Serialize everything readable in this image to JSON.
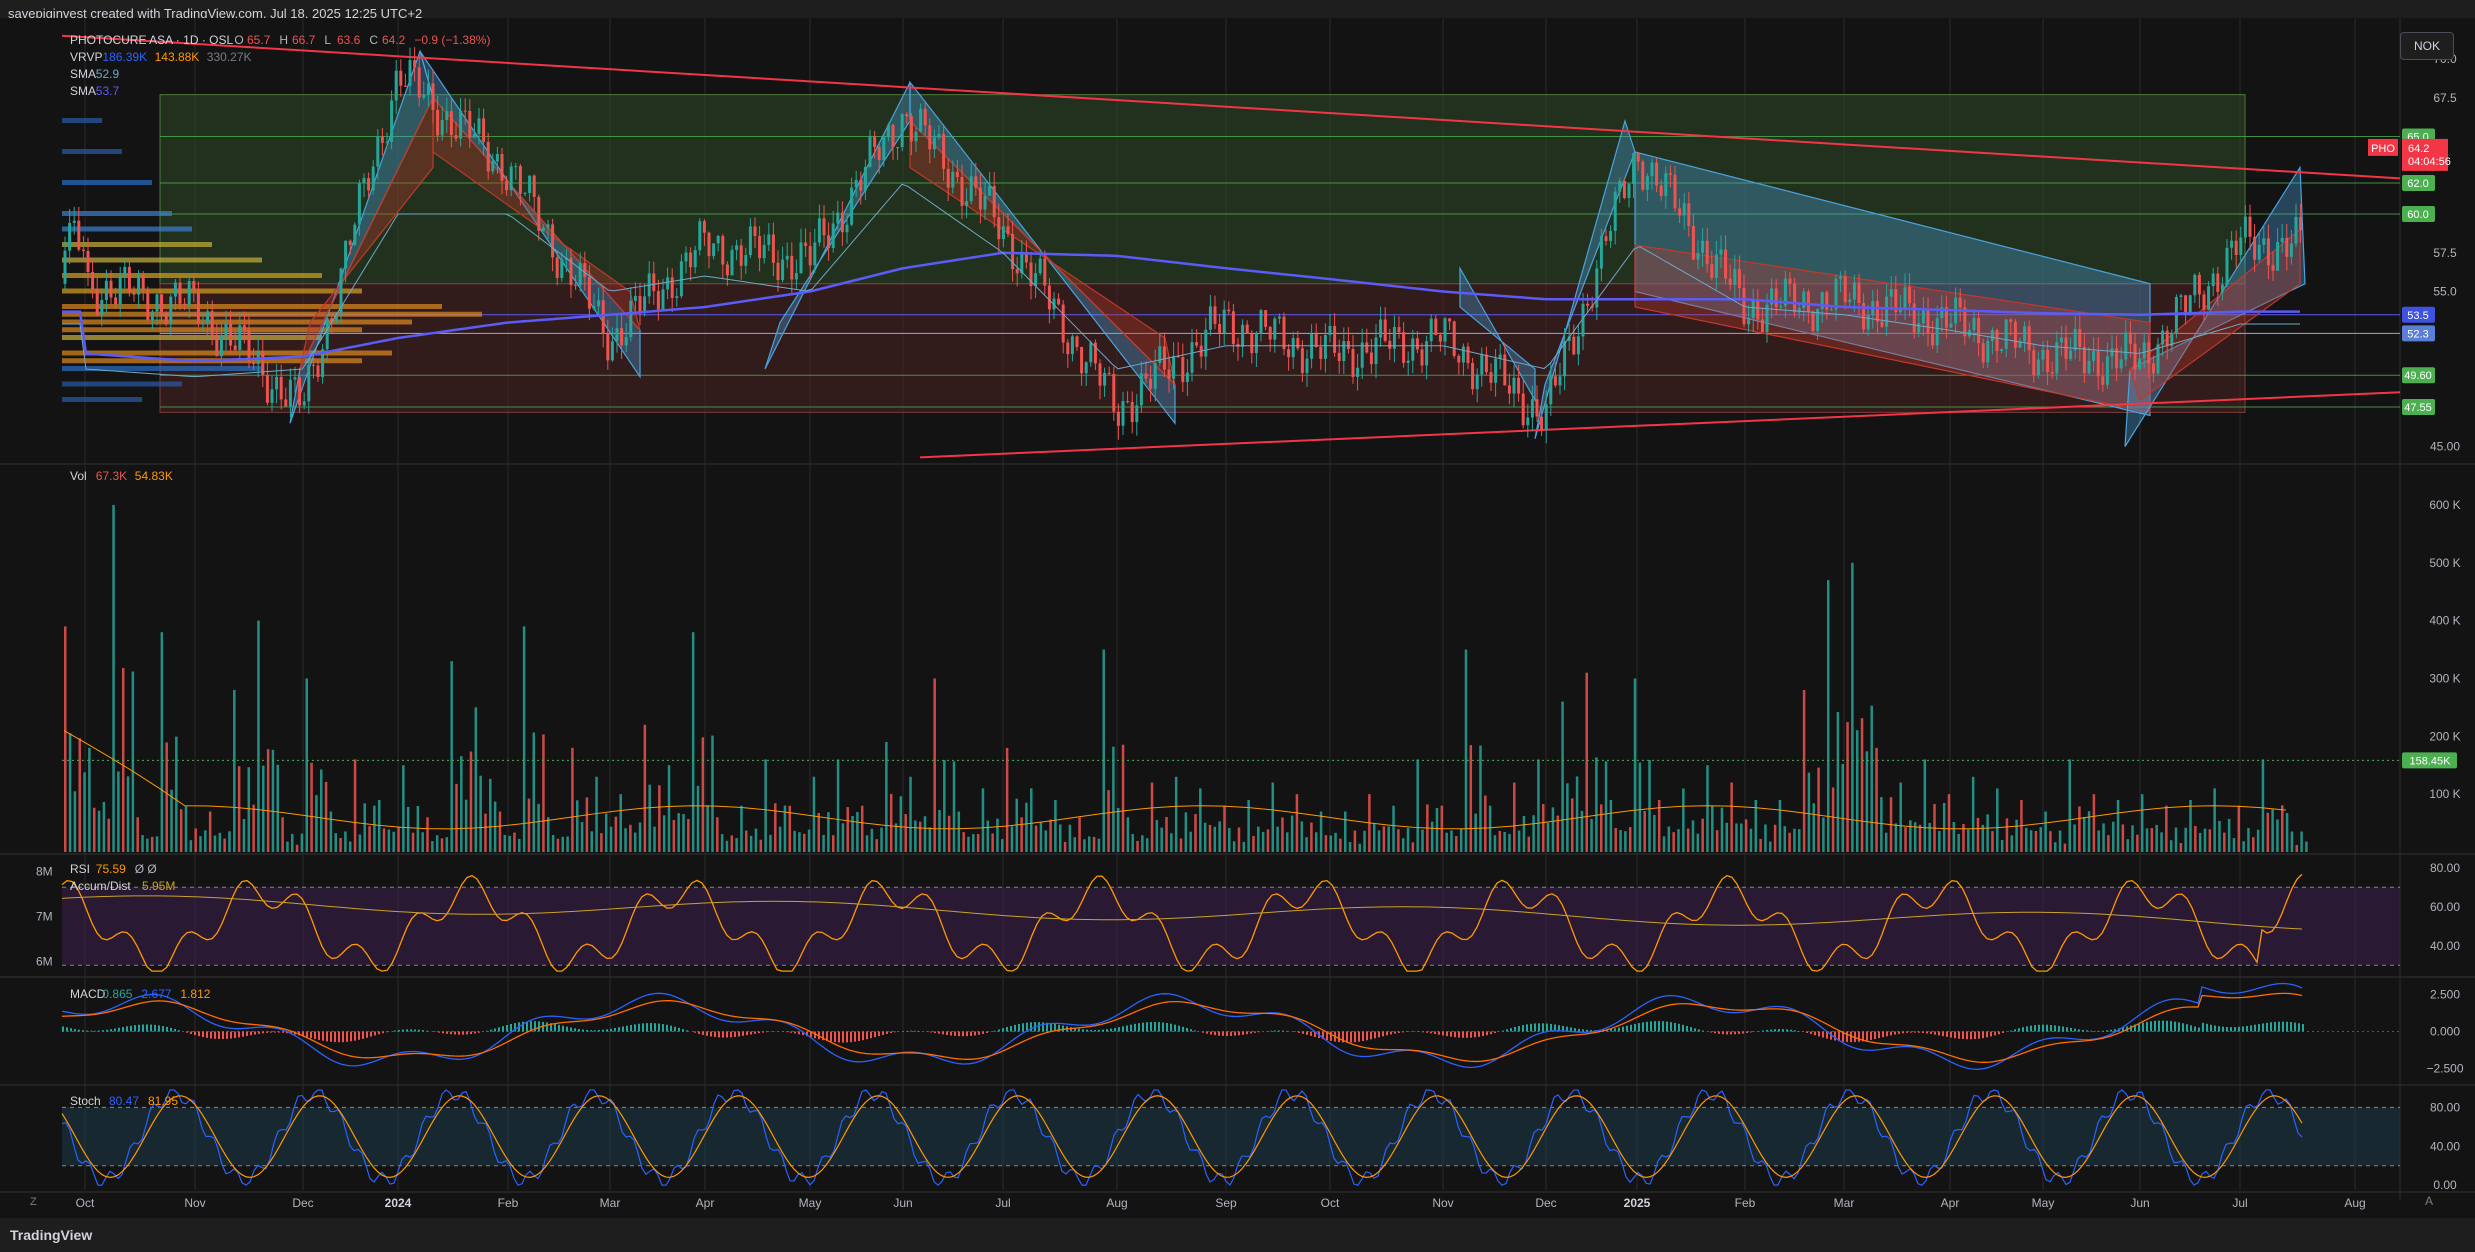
{
  "header": {
    "caption": "savepiginvest created with TradingView.com, Jul 18, 2025 12:25 UTC+2"
  },
  "currency": "NOK",
  "brand": "TradingView",
  "z_label": "Z",
  "a_label": "A",
  "legend": {
    "main": {
      "title": "PHOTOCURE ASA · 1D · OSL",
      "o_label": "O",
      "o": "65.7",
      "h_label": "H",
      "h": "66.7",
      "l_label": "L",
      "l": "63.6",
      "c_label": "C",
      "c": "64.2",
      "change": "−0.9 (−1.38%)"
    },
    "vrvp": {
      "name": "VRVP",
      "v1": "186.39K",
      "v2": "143.88K",
      "v3": "330.27K"
    },
    "sma1": {
      "name": "SMA",
      "value": "52.9"
    },
    "sma2": {
      "name": "SMA",
      "value": "53.7"
    },
    "vol": {
      "name": "Vol",
      "v1": "67.3K",
      "v2": "54.83K"
    },
    "rsi": {
      "name": "RSI",
      "v1": "75.59",
      "v2": "Ø",
      "v3": "Ø"
    },
    "ad": {
      "name": "Accum/Dist",
      "value": "5.95M"
    },
    "macd": {
      "name": "MACD",
      "v1": "0.865",
      "v2": "2.677",
      "v3": "1.812"
    },
    "stoch": {
      "name": "Stoch",
      "v1": "80.47",
      "v2": "81.95"
    }
  },
  "colors": {
    "bg": "#131313",
    "up": "#26a69a",
    "down": "#ef5350",
    "grid": "#2a2a2a",
    "trendline": "#f23645",
    "sma_blue": "#5b5bf5",
    "sma_thin": "#6fa8c8",
    "zone_green": "#3d5a2e",
    "zone_red": "#5a2a2a",
    "rsi": "#ff9800",
    "macd": "#2962ff",
    "signal": "#ff6d00",
    "stoch_k": "#2962ff",
    "stoch_d": "#ff9800"
  },
  "x_axis_labels": [
    "Oct",
    "Nov",
    "Dec",
    "2024",
    "Feb",
    "Mar",
    "Apr",
    "May",
    "Jun",
    "Jul",
    "Aug",
    "Sep",
    "Oct",
    "Nov",
    "Dec",
    "2025",
    "Feb",
    "Mar",
    "Apr",
    "May",
    "Jun",
    "Jul",
    "Aug"
  ],
  "price_axis": [
    "70.0",
    "67.5",
    "57.5",
    "55.0",
    "45.00"
  ],
  "price_badges": [
    {
      "label": "65.0",
      "value": 65.0,
      "color": "#4caf50"
    },
    {
      "label": "62.0",
      "value": 62.0,
      "color": "#4caf50"
    },
    {
      "label": "60.0",
      "value": 60.0,
      "color": "#4caf50"
    },
    {
      "label": "53.5",
      "value": 53.5,
      "color": "#3f51e0"
    },
    {
      "label": "52.3",
      "value": 52.3,
      "color": "#5b7fd6"
    },
    {
      "label": "49.60",
      "value": 49.6,
      "color": "#4caf50"
    },
    {
      "label": "47.55",
      "value": 47.55,
      "color": "#4caf50"
    }
  ],
  "last_price": {
    "ticker": "PHO",
    "price": "64.2",
    "countdown": "04:04:56"
  },
  "vol_axis": [
    "600 K",
    "500 K",
    "400 K",
    "300 K",
    "200 K",
    "100 K"
  ],
  "vol_badge": "158.45K",
  "rsi_axis": [
    "80.00",
    "60.00",
    "40.00"
  ],
  "ad_axis": [
    "8M",
    "7M",
    "6M"
  ],
  "macd_axis": [
    "2.500",
    "0.000",
    "−2.500"
  ],
  "stoch_axis": [
    "80.00",
    "40.00",
    "0.00"
  ],
  "chart_data": {
    "type": "line",
    "title": "PHOTOCURE ASA · 1D · OSL",
    "x": [
      "Oct",
      "Nov",
      "Dec",
      "2024",
      "Feb",
      "Mar",
      "Apr",
      "May",
      "Jun",
      "Jul",
      "Aug",
      "Sep",
      "Oct",
      "Nov",
      "Dec",
      "2025",
      "Feb",
      "Mar",
      "Apr",
      "May",
      "Jun",
      "Jul"
    ],
    "ylim": [
      44,
      72
    ],
    "series": [
      {
        "name": "PHOTOCURE ASA",
        "values": [
          55.5,
          54.0,
          47.5,
          69.0,
          63.0,
          52.0,
          58.0,
          57.0,
          66.5,
          59.0,
          47.5,
          53.0,
          51.0,
          52.0,
          47.0,
          64.0,
          54.0,
          54.5,
          53.0,
          51.0,
          50.5,
          58.0
        ]
      },
      {
        "name": "SMA",
        "values": [
          51.0,
          50.5,
          50.8,
          52.0,
          53.0,
          53.5,
          54.0,
          55.0,
          56.5,
          57.5,
          57.3,
          56.5,
          55.8,
          55.0,
          54.5,
          54.5,
          54.5,
          54.0,
          53.8,
          53.6,
          53.5,
          53.7
        ]
      },
      {
        "name": "SMA",
        "values": [
          50.0,
          49.5,
          50.0,
          60.0,
          60.0,
          55.0,
          56.0,
          55.0,
          62.0,
          57.5,
          50.0,
          51.5,
          51.5,
          51.5,
          50.0,
          58.0,
          54.0,
          53.5,
          52.5,
          51.5,
          51.0,
          52.9
        ]
      }
    ],
    "volume_ylim": [
      0,
      650000
    ],
    "volume_values": [
      390000,
      180000,
      600000,
      60000,
      380000,
      80000,
      70000,
      280000,
      400000,
      60000,
      300000,
      70000,
      160000,
      90000,
      150000,
      60000,
      330000,
      250000,
      70000,
      390000,
      60000,
      180000,
      130000,
      100000,
      220000,
      150000,
      380000,
      60000,
      80000,
      160000,
      80000,
      130000,
      160000,
      80000,
      190000,
      130000,
      300000,
      70000,
      110000,
      180000,
      110000,
      90000,
      60000,
      350000,
      60000,
      120000,
      130000,
      110000,
      80000,
      90000,
      120000,
      100000,
      70000,
      70000,
      100000,
      80000,
      160000,
      80000,
      350000,
      80000,
      120000,
      160000,
      260000,
      310000,
      90000,
      300000,
      90000,
      110000,
      150000,
      120000,
      90000,
      90000,
      280000,
      470000,
      500000,
      180000,
      120000,
      160000,
      100000,
      130000,
      110000,
      90000,
      70000,
      160000,
      100000,
      90000,
      100000,
      80000,
      90000,
      110000,
      80000,
      160000,
      67300
    ],
    "rsi_ylim": [
      25,
      85
    ],
    "rsi_last": 75.59,
    "macd_ylim": [
      -3.5,
      3.5
    ],
    "macd": 0.865,
    "macd_signal": 1.812,
    "stoch_ylim": [
      -5,
      100
    ],
    "stoch_k": 80.47,
    "stoch_d": 81.95
  }
}
